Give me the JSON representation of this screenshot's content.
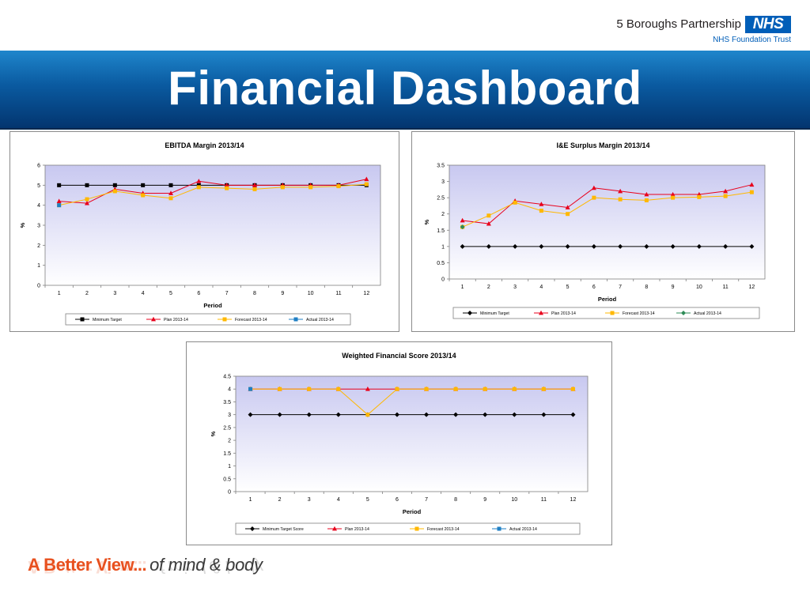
{
  "header": {
    "org_name": "5 Boroughs Partnership",
    "nhs_label": "NHS",
    "org_sub": "NHS Foundation Trust",
    "title": "Financial Dashboard"
  },
  "footer": {
    "slogan_main": "A Better View...",
    "slogan_sub": "of mind & body"
  },
  "colors": {
    "minimum": "#000000",
    "plan": "#e8001c",
    "forecast": "#ffb800",
    "actual": "#1f7fc4",
    "actual_point_ie": "#2e8b57",
    "plot_top": "#c8c8f0",
    "plot_bottom": "#ffffff"
  },
  "chart_data": [
    {
      "id": "ebitda",
      "type": "line",
      "title": "EBITDA Margin 2013/14",
      "xlabel": "Period",
      "ylabel": "%",
      "x": [
        1,
        2,
        3,
        4,
        5,
        6,
        7,
        8,
        9,
        10,
        11,
        12
      ],
      "ylim": [
        0,
        6
      ],
      "yticks": [
        "0",
        "1",
        "2",
        "3",
        "4",
        "5",
        "6"
      ],
      "grid": false,
      "legend_position": "bottom",
      "series": [
        {
          "name": "Minimum Target",
          "marker": "square",
          "color": "#000000",
          "values": [
            5,
            5,
            5,
            5,
            5,
            5,
            5,
            5,
            5,
            5,
            5,
            5
          ]
        },
        {
          "name": "Plan 2013-14",
          "marker": "triangle",
          "color": "#e8001c",
          "values": [
            4.2,
            4.1,
            4.8,
            4.6,
            4.6,
            5.2,
            5.0,
            5.0,
            5.0,
            5.0,
            5.0,
            5.3
          ]
        },
        {
          "name": "Forecast 2013-14",
          "marker": "square",
          "color": "#ffb800",
          "values": [
            4.0,
            4.3,
            4.7,
            4.5,
            4.35,
            4.9,
            4.85,
            4.8,
            4.9,
            4.9,
            4.95,
            5.05
          ]
        },
        {
          "name": "Actual 2013-14",
          "marker": "square",
          "color": "#1f7fc4",
          "values": [
            4.0,
            null,
            null,
            null,
            null,
            null,
            null,
            null,
            null,
            null,
            null,
            null
          ]
        }
      ]
    },
    {
      "id": "ie-surplus",
      "type": "line",
      "title": "I&E Surplus Margin 2013/14",
      "xlabel": "Period",
      "ylabel": "%",
      "x": [
        1,
        2,
        3,
        4,
        5,
        6,
        7,
        8,
        9,
        10,
        11,
        12
      ],
      "ylim": [
        0,
        3.5
      ],
      "yticks": [
        "0",
        "0.5",
        "1",
        "1.5",
        "2",
        "2.5",
        "3",
        "3.5"
      ],
      "grid": false,
      "legend_position": "bottom",
      "series": [
        {
          "name": "Minimum Target",
          "marker": "diamond",
          "color": "#000000",
          "values": [
            1,
            1,
            1,
            1,
            1,
            1,
            1,
            1,
            1,
            1,
            1,
            1
          ]
        },
        {
          "name": "Plan 2013-14",
          "marker": "triangle",
          "color": "#e8001c",
          "values": [
            1.8,
            1.7,
            2.4,
            2.3,
            2.2,
            2.8,
            2.7,
            2.6,
            2.6,
            2.6,
            2.7,
            2.9
          ]
        },
        {
          "name": "Forecast 2013-14",
          "marker": "square",
          "color": "#ffb800",
          "values": [
            1.6,
            1.95,
            2.35,
            2.1,
            2.0,
            2.5,
            2.45,
            2.42,
            2.5,
            2.52,
            2.55,
            2.67
          ]
        },
        {
          "name": "Actual 2013-14",
          "marker": "diamond",
          "color": "#2e8b57",
          "values": [
            1.6,
            null,
            null,
            null,
            null,
            null,
            null,
            null,
            null,
            null,
            null,
            null
          ]
        }
      ]
    },
    {
      "id": "weighted",
      "type": "line",
      "title": "Weighted Financial Score 2013/14",
      "xlabel": "Period",
      "ylabel": "%",
      "x": [
        1,
        2,
        3,
        4,
        5,
        6,
        7,
        8,
        9,
        10,
        11,
        12
      ],
      "ylim": [
        0,
        4.5
      ],
      "yticks": [
        "0",
        "0.5",
        "1",
        "1.5",
        "2",
        "2.5",
        "3",
        "3.5",
        "4",
        "4.5"
      ],
      "grid": false,
      "legend_position": "bottom",
      "series": [
        {
          "name": "Minimum Target Score",
          "marker": "diamond",
          "color": "#000000",
          "values": [
            3,
            3,
            3,
            3,
            3,
            3,
            3,
            3,
            3,
            3,
            3,
            3
          ]
        },
        {
          "name": "Plan 2013-14",
          "marker": "triangle",
          "color": "#e8001c",
          "values": [
            4,
            4,
            4,
            4,
            4,
            4,
            4,
            4,
            4,
            4,
            4,
            4
          ]
        },
        {
          "name": "Forecast 2013-14",
          "marker": "square",
          "color": "#ffb800",
          "values": [
            4,
            4,
            4,
            4,
            3,
            4,
            4,
            4,
            4,
            4,
            4,
            4
          ]
        },
        {
          "name": "Actual 2013-14",
          "marker": "square",
          "color": "#1f7fc4",
          "values": [
            4,
            null,
            null,
            null,
            null,
            null,
            null,
            null,
            null,
            null,
            null,
            null
          ]
        }
      ]
    }
  ]
}
